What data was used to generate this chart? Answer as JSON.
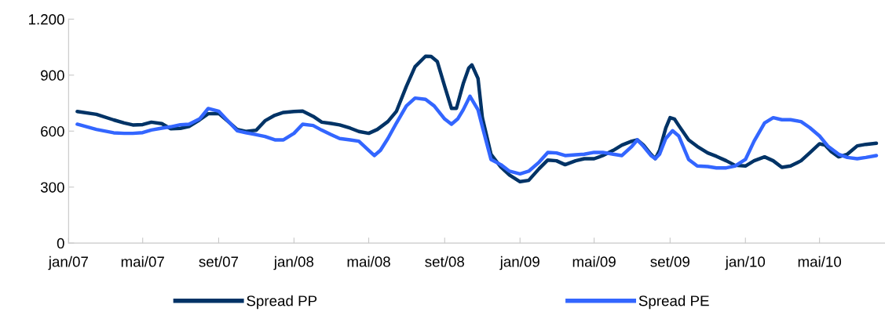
{
  "chart_data": {
    "type": "line",
    "x": [
      "2007-01-15",
      "2007-02-15",
      "2007-03-15",
      "2007-04-01",
      "2007-04-15",
      "2007-05-01",
      "2007-05-15",
      "2007-06-01",
      "2007-06-15",
      "2007-07-01",
      "2007-07-15",
      "2007-08-01",
      "2007-08-15",
      "2007-09-01",
      "2007-09-15",
      "2007-10-01",
      "2007-10-15",
      "2007-11-01",
      "2007-11-15",
      "2007-12-01",
      "2007-12-15",
      "2008-01-01",
      "2008-01-15",
      "2008-02-01",
      "2008-02-15",
      "2008-03-01",
      "2008-03-15",
      "2008-04-01",
      "2008-04-15",
      "2008-05-01",
      "2008-05-15",
      "2008-06-01",
      "2008-06-15",
      "2008-07-01",
      "2008-07-15",
      "2008-08-01",
      "2008-08-10",
      "2008-08-20",
      "2008-09-01",
      "2008-09-12",
      "2008-09-20",
      "2008-10-01",
      "2008-10-10",
      "2008-10-15",
      "2008-10-25",
      "2008-11-01",
      "2008-11-15",
      "2008-12-01",
      "2008-12-15",
      "2009-01-01",
      "2009-01-15",
      "2009-02-01",
      "2009-02-15",
      "2009-03-01",
      "2009-03-15",
      "2009-04-01",
      "2009-04-15",
      "2009-05-01",
      "2009-05-15",
      "2009-06-01",
      "2009-06-15",
      "2009-07-01",
      "2009-07-10",
      "2009-07-20",
      "2009-08-01",
      "2009-08-08",
      "2009-08-15",
      "2009-08-25",
      "2009-09-01",
      "2009-09-08",
      "2009-09-15",
      "2009-10-01",
      "2009-10-15",
      "2009-11-01",
      "2009-11-15",
      "2009-12-01",
      "2009-12-15",
      "2010-01-01",
      "2010-01-15",
      "2010-02-01",
      "2010-02-15",
      "2010-03-01",
      "2010-03-15",
      "2010-04-01",
      "2010-04-15",
      "2010-05-01",
      "2010-05-10",
      "2010-05-20",
      "2010-06-01",
      "2010-06-15",
      "2010-07-01",
      "2010-07-15",
      "2010-08-01"
    ],
    "series": [
      {
        "name": "Spread PP",
        "color": "#003366",
        "values": [
          705,
          690,
          660,
          644,
          633,
          635,
          648,
          640,
          613,
          615,
          625,
          660,
          693,
          695,
          655,
          609,
          598,
          605,
          655,
          685,
          700,
          705,
          707,
          679,
          648,
          641,
          633,
          616,
          598,
          588,
          609,
          651,
          707,
          840,
          945,
          1001,
          1000,
          973,
          840,
          722,
          722,
          854,
          938,
          955,
          882,
          672,
          476,
          407,
          364,
          329,
          336,
          399,
          445,
          441,
          420,
          441,
          452,
          452,
          469,
          497,
          525,
          546,
          553,
          525,
          476,
          452,
          497,
          616,
          672,
          665,
          630,
          553,
          518,
          483,
          465,
          441,
          417,
          413,
          441,
          462,
          441,
          406,
          413,
          441,
          483,
          532,
          525,
          490,
          462,
          476,
          521,
          529,
          535
        ]
      },
      {
        "name": "Spread PE",
        "color": "#3366ff",
        "x": [
          "2007-01-15",
          "2007-02-15",
          "2007-03-15",
          "2007-04-01",
          "2007-04-15",
          "2007-05-01",
          "2007-05-15",
          "2007-06-01",
          "2007-06-15",
          "2007-07-01",
          "2007-07-15",
          "2007-08-01",
          "2007-08-15",
          "2007-09-01",
          "2007-09-15",
          "2007-10-01",
          "2007-10-15",
          "2007-11-01",
          "2007-11-15",
          "2007-12-01",
          "2007-12-15",
          "2008-01-01",
          "2008-01-15",
          "2008-02-01",
          "2008-02-15",
          "2008-03-01",
          "2008-03-15",
          "2008-04-01",
          "2008-04-15",
          "2008-05-01",
          "2008-05-10",
          "2008-05-20",
          "2008-06-01",
          "2008-06-15",
          "2008-07-01",
          "2008-07-15",
          "2008-08-01",
          "2008-08-15",
          "2008-09-01",
          "2008-09-12",
          "2008-09-22",
          "2008-10-01",
          "2008-10-12",
          "2008-10-25",
          "2008-11-01",
          "2008-11-15",
          "2008-12-01",
          "2008-12-15",
          "2009-01-01",
          "2009-01-15",
          "2009-02-01",
          "2009-02-15",
          "2009-03-01",
          "2009-03-15",
          "2009-04-01",
          "2009-04-15",
          "2009-05-01",
          "2009-05-15",
          "2009-06-01",
          "2009-06-15",
          "2009-07-01",
          "2009-07-10",
          "2009-07-20",
          "2009-08-01",
          "2009-08-08",
          "2009-08-15",
          "2009-08-25",
          "2009-09-05",
          "2009-09-15",
          "2009-10-01",
          "2009-10-15",
          "2009-11-01",
          "2009-11-15",
          "2009-12-01",
          "2009-12-15",
          "2010-01-01",
          "2010-01-15",
          "2010-02-01",
          "2010-02-15",
          "2010-03-01",
          "2010-03-15",
          "2010-04-01",
          "2010-04-15",
          "2010-05-01",
          "2010-05-15",
          "2010-06-01",
          "2010-06-15",
          "2010-07-01",
          "2010-07-15",
          "2010-08-01"
        ],
        "values": [
          637,
          609,
          591,
          588,
          588,
          592,
          606,
          616,
          623,
          634,
          637,
          665,
          721,
          707,
          658,
          602,
          591,
          581,
          571,
          553,
          553,
          588,
          637,
          630,
          605,
          581,
          560,
          553,
          546,
          497,
          469,
          497,
          560,
          644,
          735,
          777,
          770,
          735,
          665,
          637,
          665,
          714,
          787,
          714,
          623,
          448,
          420,
          385,
          371,
          385,
          434,
          486,
          483,
          469,
          473,
          476,
          486,
          486,
          476,
          469,
          518,
          553,
          518,
          469,
          452,
          476,
          560,
          602,
          574,
          448,
          413,
          410,
          403,
          403,
          413,
          448,
          546,
          644,
          672,
          661,
          661,
          651,
          619,
          574,
          518,
          476,
          459,
          452,
          459,
          469
        ]
      }
    ],
    "xlim": [
      "2007-01-01",
      "2010-08-15"
    ],
    "xticks": [
      {
        "value": "2007-01-01",
        "label": "jan/07"
      },
      {
        "value": "2007-05-01",
        "label": "mai/07"
      },
      {
        "value": "2007-09-01",
        "label": "set/07"
      },
      {
        "value": "2008-01-01",
        "label": "jan/08"
      },
      {
        "value": "2008-05-01",
        "label": "mai/08"
      },
      {
        "value": "2008-09-01",
        "label": "set/08"
      },
      {
        "value": "2009-01-01",
        "label": "jan/09"
      },
      {
        "value": "2009-05-01",
        "label": "mai/09"
      },
      {
        "value": "2009-09-01",
        "label": "set/09"
      },
      {
        "value": "2010-01-01",
        "label": "jan/10"
      },
      {
        "value": "2010-05-01",
        "label": "mai/10"
      }
    ],
    "ylim": [
      0,
      1200
    ],
    "yticks": [
      0,
      300,
      600,
      900,
      {
        "value": 1200,
        "label": "1.200"
      }
    ],
    "grid": false,
    "legend": "bottom",
    "marker": "none",
    "line_style": "solid"
  }
}
